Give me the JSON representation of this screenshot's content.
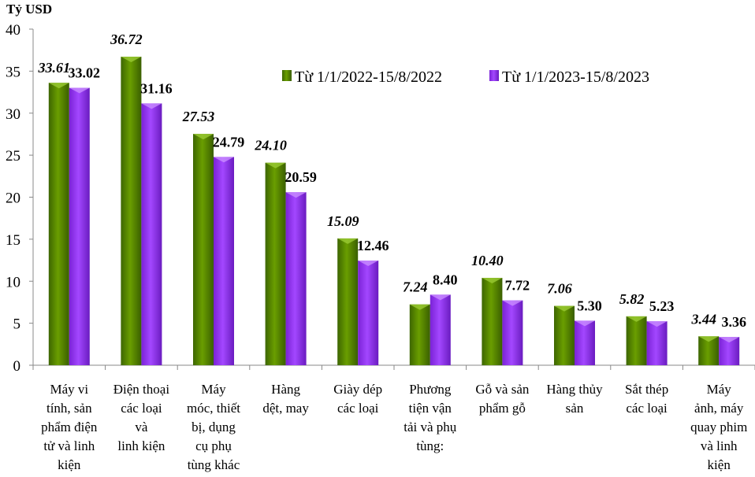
{
  "chart_data": {
    "type": "bar",
    "ylabel": "Tỷ USD",
    "ylim": [
      0,
      40
    ],
    "yticks": [
      0,
      5,
      10,
      15,
      20,
      25,
      30,
      35,
      40
    ],
    "grid": false,
    "legend_position": "top-right",
    "categories": [
      [
        "Máy vi",
        "tính, sản",
        "phẩm điện",
        "tử và linh",
        "kiện"
      ],
      [
        "Điện thoại",
        "các loại",
        "và",
        "linh kiện"
      ],
      [
        "Máy",
        "móc, thiết",
        "bị, dụng",
        "cụ phụ",
        "tùng khác"
      ],
      [
        "Hàng",
        "dệt, may"
      ],
      [
        "Giày dép",
        "các loại"
      ],
      [
        "Phương",
        "tiện vận",
        "tải và phụ",
        "tùng:"
      ],
      [
        "Gỗ và sản",
        "phẩm gỗ"
      ],
      [
        "Hàng thủy",
        "sản"
      ],
      [
        "Sắt thép",
        "các loại"
      ],
      [
        "Máy",
        "ảnh, máy",
        "quay phim",
        "và linh",
        "kiện"
      ]
    ],
    "series": [
      {
        "name": "Từ 1/1/2022-15/8/2022",
        "color": "#5a8c00",
        "values": [
          33.61,
          36.72,
          27.53,
          24.1,
          15.09,
          7.24,
          10.4,
          7.06,
          5.82,
          3.44
        ],
        "labels": [
          "33.61",
          "36.72",
          "27.53",
          "24.10",
          "15.09",
          "7.24",
          "10.40",
          "7.06",
          "5.82",
          "3.44"
        ]
      },
      {
        "name": "Từ 1/1/2023-15/8/2023",
        "color": "#9933ff",
        "values": [
          33.02,
          31.16,
          24.79,
          20.59,
          12.46,
          8.4,
          7.72,
          5.3,
          5.23,
          3.36
        ],
        "labels": [
          "33.02",
          "31.16",
          "24.79",
          "20.59",
          "12.46",
          "8.40",
          "7.72",
          "5.30",
          "5.23",
          "3.36"
        ]
      }
    ]
  }
}
